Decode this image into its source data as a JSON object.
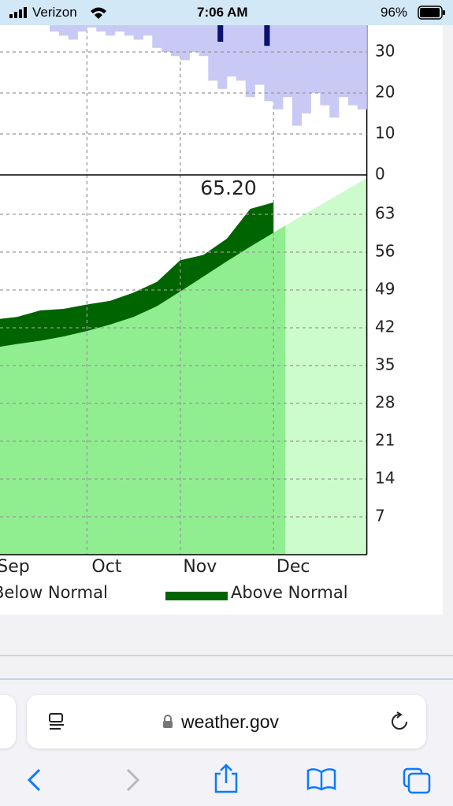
{
  "status_bar": {
    "carrier": "Verizon",
    "time": "7:06 AM",
    "battery": "96%"
  },
  "chart_data": [
    {
      "type": "bar",
      "ylim": [
        0,
        37
      ],
      "yticks": [
        0,
        10,
        20,
        30
      ],
      "grid": true,
      "series": [
        {
          "color": "#c9c9f5",
          "values": [
            null,
            null,
            null,
            null,
            null,
            null,
            35,
            34,
            33,
            35,
            36,
            35,
            34,
            35,
            34,
            33,
            34,
            31,
            30,
            29,
            28,
            30,
            29,
            23,
            21,
            24,
            23,
            19,
            22,
            18,
            16,
            19,
            12,
            15,
            20,
            17,
            14,
            19,
            17,
            16
          ]
        },
        {
          "color": "#0b1270",
          "values": [
            null,
            null,
            null,
            null,
            null,
            null,
            null,
            null,
            null,
            null,
            null,
            null,
            null,
            null,
            null,
            null,
            null,
            null,
            null,
            null,
            null,
            null,
            null,
            null,
            32.5,
            null,
            null,
            null,
            null,
            31.5,
            null,
            null,
            null,
            null,
            null,
            null,
            null,
            null,
            null,
            null
          ]
        }
      ]
    },
    {
      "type": "area",
      "categories": [
        "Sep",
        null,
        null,
        null,
        "Oct",
        null,
        null,
        null,
        "Nov",
        null,
        null,
        null,
        "Dec",
        null,
        null,
        null,
        null
      ],
      "ylim": [
        0,
        70
      ],
      "yticks": [
        7,
        14,
        21,
        28,
        35,
        42,
        49,
        56,
        63
      ],
      "grid": true,
      "observed": {
        "color": "#006400",
        "values": [
          43.5,
          44,
          45.2,
          45.5,
          46.3,
          47,
          48.5,
          50.5,
          54.5,
          55.5,
          58.5,
          64,
          65.2,
          null,
          null,
          null,
          null
        ]
      },
      "normal": {
        "color": "#90ee90",
        "future_color": "#ccfccc",
        "values": [
          38.3,
          39,
          39.6,
          40.4,
          41.4,
          42.6,
          44,
          46,
          48.7,
          51.5,
          54.3,
          57,
          59.6,
          62.2,
          64.7,
          67.2,
          69.7
        ]
      },
      "annotation": "65.20",
      "legend": [
        {
          "label": "Below Normal"
        },
        {
          "label": "Above Normal",
          "color": "#006400"
        }
      ]
    }
  ],
  "browser": {
    "url": "weather.gov"
  }
}
